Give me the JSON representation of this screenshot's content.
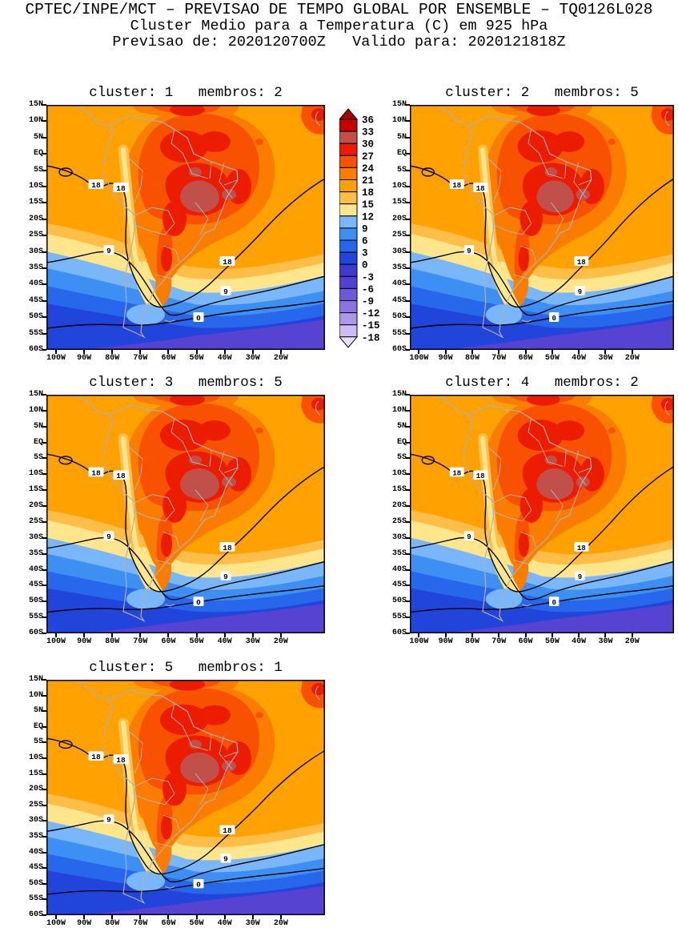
{
  "header": {
    "line1": "CPTEC/INPE/MCT – PREVISAO DE TEMPO GLOBAL POR ENSEMBLE – TQ0126L028",
    "line2": "Cluster Medio para a Temperatura (C) em 925 hPa",
    "line3": "Previsao de: 2020120700Z   Valido para: 2020121818Z"
  },
  "chart_data": {
    "type": "heatmap",
    "title": "CPTEC/INPE/MCT – PREVISAO DE TEMPO GLOBAL POR ENSEMBLE – TQ0126L028",
    "subtitle": "Cluster Medio para a Temperatura (C) em 925 hPa",
    "forecast_init": "2020120700Z",
    "forecast_valid": "2020121818Z",
    "model": "TQ0126L028",
    "variable": "Temperatura",
    "units": "C",
    "level": "925 hPa",
    "legend_position": "between panel 1 and panel 2",
    "panels": [
      {
        "title": "cluster: 1   membros: 2",
        "cluster": 1,
        "membros": 2
      },
      {
        "title": "cluster: 2   membros: 5",
        "cluster": 2,
        "membros": 5
      },
      {
        "title": "cluster: 3   membros: 5",
        "cluster": 3,
        "membros": 5
      },
      {
        "title": "cluster: 4   membros: 2",
        "cluster": 4,
        "membros": 2
      },
      {
        "title": "cluster: 5   membros: 1",
        "cluster": 5,
        "membros": 1
      }
    ],
    "y_axis": {
      "direction": "latitude",
      "labels": [
        "15N",
        "10N",
        "5N",
        "EQ",
        "5S",
        "10S",
        "15S",
        "20S",
        "25S",
        "30S",
        "35S",
        "40S",
        "45S",
        "50S",
        "55S",
        "60S"
      ]
    },
    "x_axis": {
      "direction": "longitude",
      "labels": [
        "100W",
        "90W",
        "80W",
        "70W",
        "60W",
        "50W",
        "40W",
        "30W",
        "20W"
      ]
    },
    "colorbar": {
      "levels_c": [
        36,
        33,
        30,
        27,
        24,
        21,
        18,
        15,
        12,
        9,
        6,
        3,
        0,
        -3,
        -6,
        -9,
        -12,
        -15,
        -18
      ],
      "labels": [
        "36",
        "33",
        "30",
        "27",
        "24",
        "21",
        "18",
        "15",
        "12",
        "9",
        "6",
        "3",
        "0",
        "-3",
        "-6",
        "-9",
        "-12",
        "-15",
        "-18"
      ],
      "colors": [
        "#C40000",
        "#C2504A",
        "#EB1C00",
        "#F85200",
        "#FB7D00",
        "#FFA101",
        "#FFBE47",
        "#FFE68C",
        "#79B7FA",
        "#3E8FF3",
        "#2767EC",
        "#2144DB",
        "#3D3BCE",
        "#4F42CF",
        "#6C59D8",
        "#8A74E1",
        "#AD99EC",
        "#CDBDF5"
      ],
      "arrow_top": "#A80000",
      "arrow_bottom": "#E7DFFB"
    },
    "contour_line_labels": [
      "18",
      "9",
      "0"
    ],
    "map_colors": {
      "t30_33": "#C2504A",
      "t27_30": "#EB1C00",
      "t24_27": "#F85200",
      "t21_24": "#FB7D00",
      "t18_21": "#FFA101",
      "t15_18": "#FFBE47",
      "t12_15": "#FFE68C",
      "t9_12": "#79B7FA",
      "t6_9": "#3E8FF3",
      "t3_6": "#2767EC",
      "t0_3": "#2144DB",
      "tm3_0": "#5743D2",
      "coastline": "#AFAFAF",
      "borders": "#B8B8B8",
      "contour": "#000000",
      "frame": "#000000"
    }
  }
}
